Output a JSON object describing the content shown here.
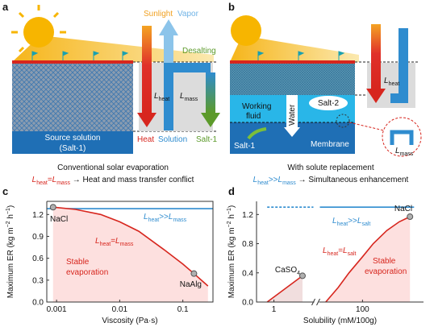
{
  "panels": {
    "a": {
      "label": "a",
      "sunlight": "Sunlight",
      "vapor": "Vapor",
      "desalting": "Desalting",
      "l_heat": [
        {
          "text": "L",
          "italic": true
        },
        {
          "text": "heat",
          "sub": true
        }
      ],
      "l_mass": [
        {
          "text": "L",
          "italic": true
        },
        {
          "text": "mass",
          "sub": true
        }
      ],
      "source": [
        "Source solution",
        "(Salt-1)"
      ],
      "heat": "Heat",
      "solution": "Solution",
      "salt1": "Salt-1",
      "caption": "Conventional solar evaporation",
      "formula": [
        {
          "text": "L",
          "italic": true,
          "color": "#d7261e"
        },
        {
          "text": "heat",
          "sub": true,
          "color": "#d7261e"
        },
        {
          "text": "=",
          "color": "#d7261e"
        },
        {
          "text": "L",
          "italic": true,
          "color": "#d7261e"
        },
        {
          "text": "mass",
          "sub": true,
          "color": "#d7261e"
        },
        {
          "text": " → Heat and mass transfer conflict"
        }
      ]
    },
    "b": {
      "label": "b",
      "l_heat": [
        {
          "text": "L",
          "italic": true
        },
        {
          "text": "heat",
          "sub": true
        }
      ],
      "working_fluid": [
        "Working",
        "fluid"
      ],
      "water": "Water",
      "salt2": "Salt-2",
      "salt1": "Salt-1",
      "membrane": "Membrane",
      "l_mass": [
        {
          "text": "L",
          "italic": true
        },
        {
          "text": "mass",
          "sub": true
        }
      ],
      "caption": "With solute replacement",
      "formula": [
        {
          "text": "L",
          "italic": true,
          "color": "#2f8ccf"
        },
        {
          "text": "heat",
          "sub": true,
          "color": "#2f8ccf"
        },
        {
          "text": ">>",
          "color": "#2f8ccf"
        },
        {
          "text": "L",
          "italic": true,
          "color": "#2f8ccf"
        },
        {
          "text": "mass",
          "sub": true,
          "color": "#2f8ccf"
        },
        {
          "text": " → Simultaneous enhancement"
        }
      ]
    }
  },
  "chart_data": [
    {
      "type": "line",
      "label": "c",
      "xlabel": "Viscosity (Pa·s)",
      "ylabel": [
        {
          "text": "Maximum ER (kg m"
        },
        {
          "text": "−2",
          "sup": true
        },
        {
          "text": " h"
        },
        {
          "text": "−1",
          "sup": true
        },
        {
          "text": ")"
        }
      ],
      "xscale": "log",
      "xlim": [
        0.0007,
        0.3
      ],
      "xticks": [
        0.001,
        0.01,
        0.1
      ],
      "ylim": [
        0,
        1.38
      ],
      "yticks": [
        {
          "value": 0,
          "label": "0.0"
        },
        0.3,
        0.6,
        0.9,
        1.2
      ],
      "series": [
        {
          "color": "#2f8ccf",
          "x": [
            0.0007,
            0.3
          ],
          "values": [
            1.28,
            1.28
          ]
        },
        {
          "color": "#d7261e",
          "fill": "#fde0df",
          "x": [
            0.00088,
            0.002,
            0.005,
            0.01,
            0.02,
            0.05,
            0.1,
            0.15,
            0.25
          ],
          "values": [
            1.3,
            1.27,
            1.2,
            1.1,
            0.97,
            0.72,
            0.52,
            0.39,
            0.22
          ]
        }
      ],
      "points": [
        {
          "label": [
            {
              "text": "NaCl"
            }
          ],
          "x": 0.00088,
          "value": 1.3
        },
        {
          "label": [
            {
              "text": "NaAlg"
            }
          ],
          "x": 0.15,
          "value": 0.39
        }
      ],
      "annotations": [
        {
          "color": "#2f8ccf",
          "text": [
            {
              "text": "L",
              "italic": true
            },
            {
              "text": "heat",
              "sub": true
            },
            {
              "text": ">>"
            },
            {
              "text": "L",
              "italic": true
            },
            {
              "text": "mass",
              "sub": true
            }
          ]
        },
        {
          "color": "#d7261e",
          "text": [
            {
              "text": "L",
              "italic": true
            },
            {
              "text": "heat",
              "sub": true
            },
            {
              "text": "="
            },
            {
              "text": "L",
              "italic": true
            },
            {
              "text": "mass",
              "sub": true
            }
          ]
        },
        {
          "color": "#d7261e",
          "text": [
            {
              "text": "Stable"
            }
          ]
        },
        {
          "color": "#d7261e",
          "text": [
            {
              "text": "evaporation"
            }
          ]
        }
      ]
    },
    {
      "type": "line",
      "label": "d",
      "xlabel": "Solubility (mM/100g)",
      "ylabel": [
        {
          "text": "Maximum ER (kg m"
        },
        {
          "text": "−2",
          "sup": true
        },
        {
          "text": " h"
        },
        {
          "text": "−1",
          "sup": true
        },
        {
          "text": ")"
        }
      ],
      "xscale": "log",
      "xlim": [
        0.4,
        1000
      ],
      "xbreak": [
        8,
        20
      ],
      "xticks": [
        1,
        100
      ],
      "ylim": [
        0,
        1.38
      ],
      "yticks": [
        {
          "value": 0,
          "label": "0.0"
        },
        0.4,
        0.8,
        1.2
      ],
      "series": [
        {
          "color": "#2f8ccf",
          "dashed": true,
          "x": [
            0.7,
            8
          ],
          "values": [
            1.3,
            1.3
          ]
        },
        {
          "color": "#2f8ccf",
          "x": [
            20,
            700
          ],
          "values": [
            1.3,
            1.3
          ]
        },
        {
          "color": "#d7261e",
          "fill": "#f1dede",
          "x": [
            0.7,
            4.5
          ],
          "values": [
            0,
            0.36
          ]
        },
        {
          "color": "#d7261e",
          "fill": "#fde0df",
          "x": [
            25,
            40,
            60,
            100,
            150,
            250,
            400,
            600
          ],
          "values": [
            0,
            0.2,
            0.4,
            0.62,
            0.8,
            0.98,
            1.1,
            1.17
          ]
        }
      ],
      "points": [
        {
          "label": [
            {
              "text": "CaSO"
            },
            {
              "text": "4",
              "sub": true
            }
          ],
          "x": 4.5,
          "value": 0.36
        },
        {
          "label": [
            {
              "text": "NaCl"
            }
          ],
          "x": 600,
          "value": 1.17
        }
      ],
      "annotations": [
        {
          "color": "#2f8ccf",
          "text": [
            {
              "text": "L",
              "italic": true
            },
            {
              "text": "heat",
              "sub": true
            },
            {
              "text": ">>"
            },
            {
              "text": "L",
              "italic": true
            },
            {
              "text": "salt",
              "sub": true
            }
          ]
        },
        {
          "color": "#d7261e",
          "text": [
            {
              "text": "L",
              "italic": true
            },
            {
              "text": "heat",
              "sub": true
            },
            {
              "text": "="
            },
            {
              "text": "L",
              "italic": true
            },
            {
              "text": "salt",
              "sub": true
            }
          ]
        },
        {
          "color": "#d7261e",
          "text": [
            {
              "text": "Stable"
            }
          ]
        },
        {
          "color": "#d7261e",
          "text": [
            {
              "text": "evaporation"
            }
          ]
        }
      ]
    }
  ]
}
